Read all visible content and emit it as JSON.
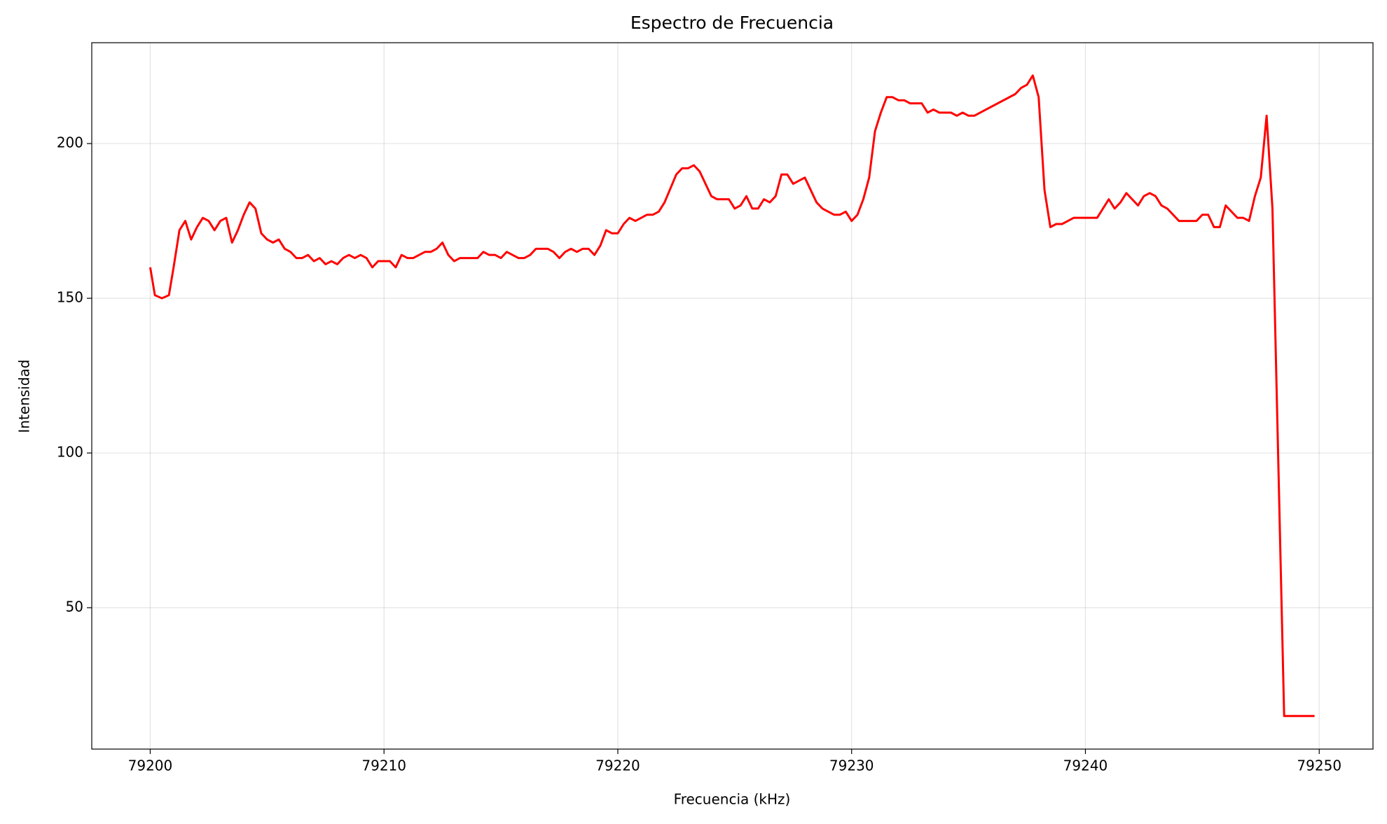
{
  "chart_data": {
    "type": "line",
    "title": "Espectro de Frecuencia",
    "xlabel": "Frecuencia (kHz)",
    "ylabel": "Intensidad",
    "x": [
      79200,
      79200.2,
      79200.5,
      79200.8,
      79201.0,
      79201.25,
      79201.5,
      79201.75,
      79202.0,
      79202.25,
      79202.5,
      79202.75,
      79203.0,
      79203.25,
      79203.5,
      79203.75,
      79204.0,
      79204.25,
      79204.5,
      79204.75,
      79205.0,
      79205.25,
      79205.5,
      79205.75,
      79206.0,
      79206.25,
      79206.5,
      79206.75,
      79207.0,
      79207.25,
      79207.5,
      79207.75,
      79208.0,
      79208.25,
      79208.5,
      79208.75,
      79209.0,
      79209.25,
      79209.5,
      79209.75,
      79210.0,
      79210.25,
      79210.5,
      79210.75,
      79211.0,
      79211.25,
      79211.5,
      79211.75,
      79212.0,
      79212.25,
      79212.5,
      79212.75,
      79213.0,
      79213.25,
      79214.0,
      79214.25,
      79214.5,
      79214.75,
      79215.0,
      79215.25,
      79215.5,
      79215.75,
      79216.0,
      79216.25,
      79216.5,
      79217.0,
      79217.25,
      79217.5,
      79217.75,
      79218.0,
      79218.25,
      79218.5,
      79218.75,
      79219.0,
      79219.25,
      79219.5,
      79219.75,
      79220.0,
      79220.25,
      79220.5,
      79220.75,
      79221.0,
      79221.25,
      79221.5,
      79221.75,
      79222.0,
      79222.5,
      79222.75,
      79223.0,
      79223.25,
      79223.5,
      79224.0,
      79224.25,
      79224.75,
      79225.0,
      79225.25,
      79225.5,
      79225.75,
      79226.0,
      79226.25,
      79226.5,
      79226.75,
      79227.0,
      79227.25,
      79227.5,
      79228.0,
      79228.5,
      79228.75,
      79229.25,
      79229.5,
      79229.75,
      79230.0,
      79230.25,
      79230.5,
      79230.75,
      79231.0,
      79231.25,
      79231.5,
      79231.75,
      79232.0,
      79232.25,
      79232.5,
      79233.0,
      79233.25,
      79233.5,
      79233.75,
      79234.25,
      79234.5,
      79234.75,
      79235.0,
      79235.25,
      79237.0,
      79237.25,
      79237.5,
      79237.75,
      79238.0,
      79238.25,
      79238.5,
      79238.75,
      79239.0,
      79239.5,
      79240.5,
      79241.0,
      79241.25,
      79241.5,
      79241.75,
      79242.0,
      79242.25,
      79242.5,
      79242.75,
      79243.0,
      79243.25,
      79243.5,
      79244.0,
      79244.75,
      79245.0,
      79245.25,
      79245.5,
      79245.75,
      79246.0,
      79246.5,
      79246.75,
      79247.0,
      79247.25,
      79247.5,
      79247.75,
      79248.0,
      79248.5,
      79249.8
    ],
    "values": [
      160,
      151,
      150,
      151,
      160,
      172,
      175,
      169,
      173,
      176,
      175,
      172,
      175,
      176,
      168,
      172,
      177,
      181,
      179,
      171,
      169,
      168,
      169,
      166,
      165,
      163,
      163,
      164,
      162,
      163,
      161,
      162,
      161,
      163,
      164,
      163,
      164,
      163,
      160,
      162,
      162,
      162,
      160,
      164,
      163,
      163,
      164,
      165,
      165,
      166,
      168,
      164,
      162,
      163,
      163,
      165,
      164,
      164,
      163,
      165,
      164,
      163,
      163,
      164,
      166,
      166,
      165,
      163,
      165,
      166,
      165,
      166,
      166,
      164,
      167,
      172,
      171,
      171,
      174,
      176,
      175,
      176,
      177,
      177,
      178,
      181,
      190,
      192,
      192,
      193,
      191,
      183,
      182,
      182,
      179,
      180,
      183,
      179,
      179,
      182,
      181,
      183,
      190,
      190,
      187,
      189,
      181,
      179,
      177,
      177,
      178,
      175,
      177,
      182,
      189,
      204,
      210,
      215,
      215,
      214,
      214,
      213,
      213,
      210,
      211,
      210,
      210,
      209,
      210,
      209,
      209,
      216,
      218,
      219,
      222,
      215,
      185,
      173,
      174,
      174,
      176,
      176,
      182,
      179,
      181,
      184,
      182,
      180,
      183,
      184,
      183,
      180,
      179,
      175,
      175,
      177,
      177,
      173,
      173,
      180,
      176,
      176,
      175,
      183,
      189,
      209,
      179,
      15,
      15
    ],
    "color": "#ff0000",
    "xlim": [
      79197.5,
      79252.3
    ],
    "ylim": [
      4.3,
      232.6
    ],
    "xticks": [
      79200,
      79210,
      79220,
      79230,
      79240,
      79250
    ],
    "yticks": [
      50,
      100,
      150,
      200
    ],
    "grid": true
  }
}
